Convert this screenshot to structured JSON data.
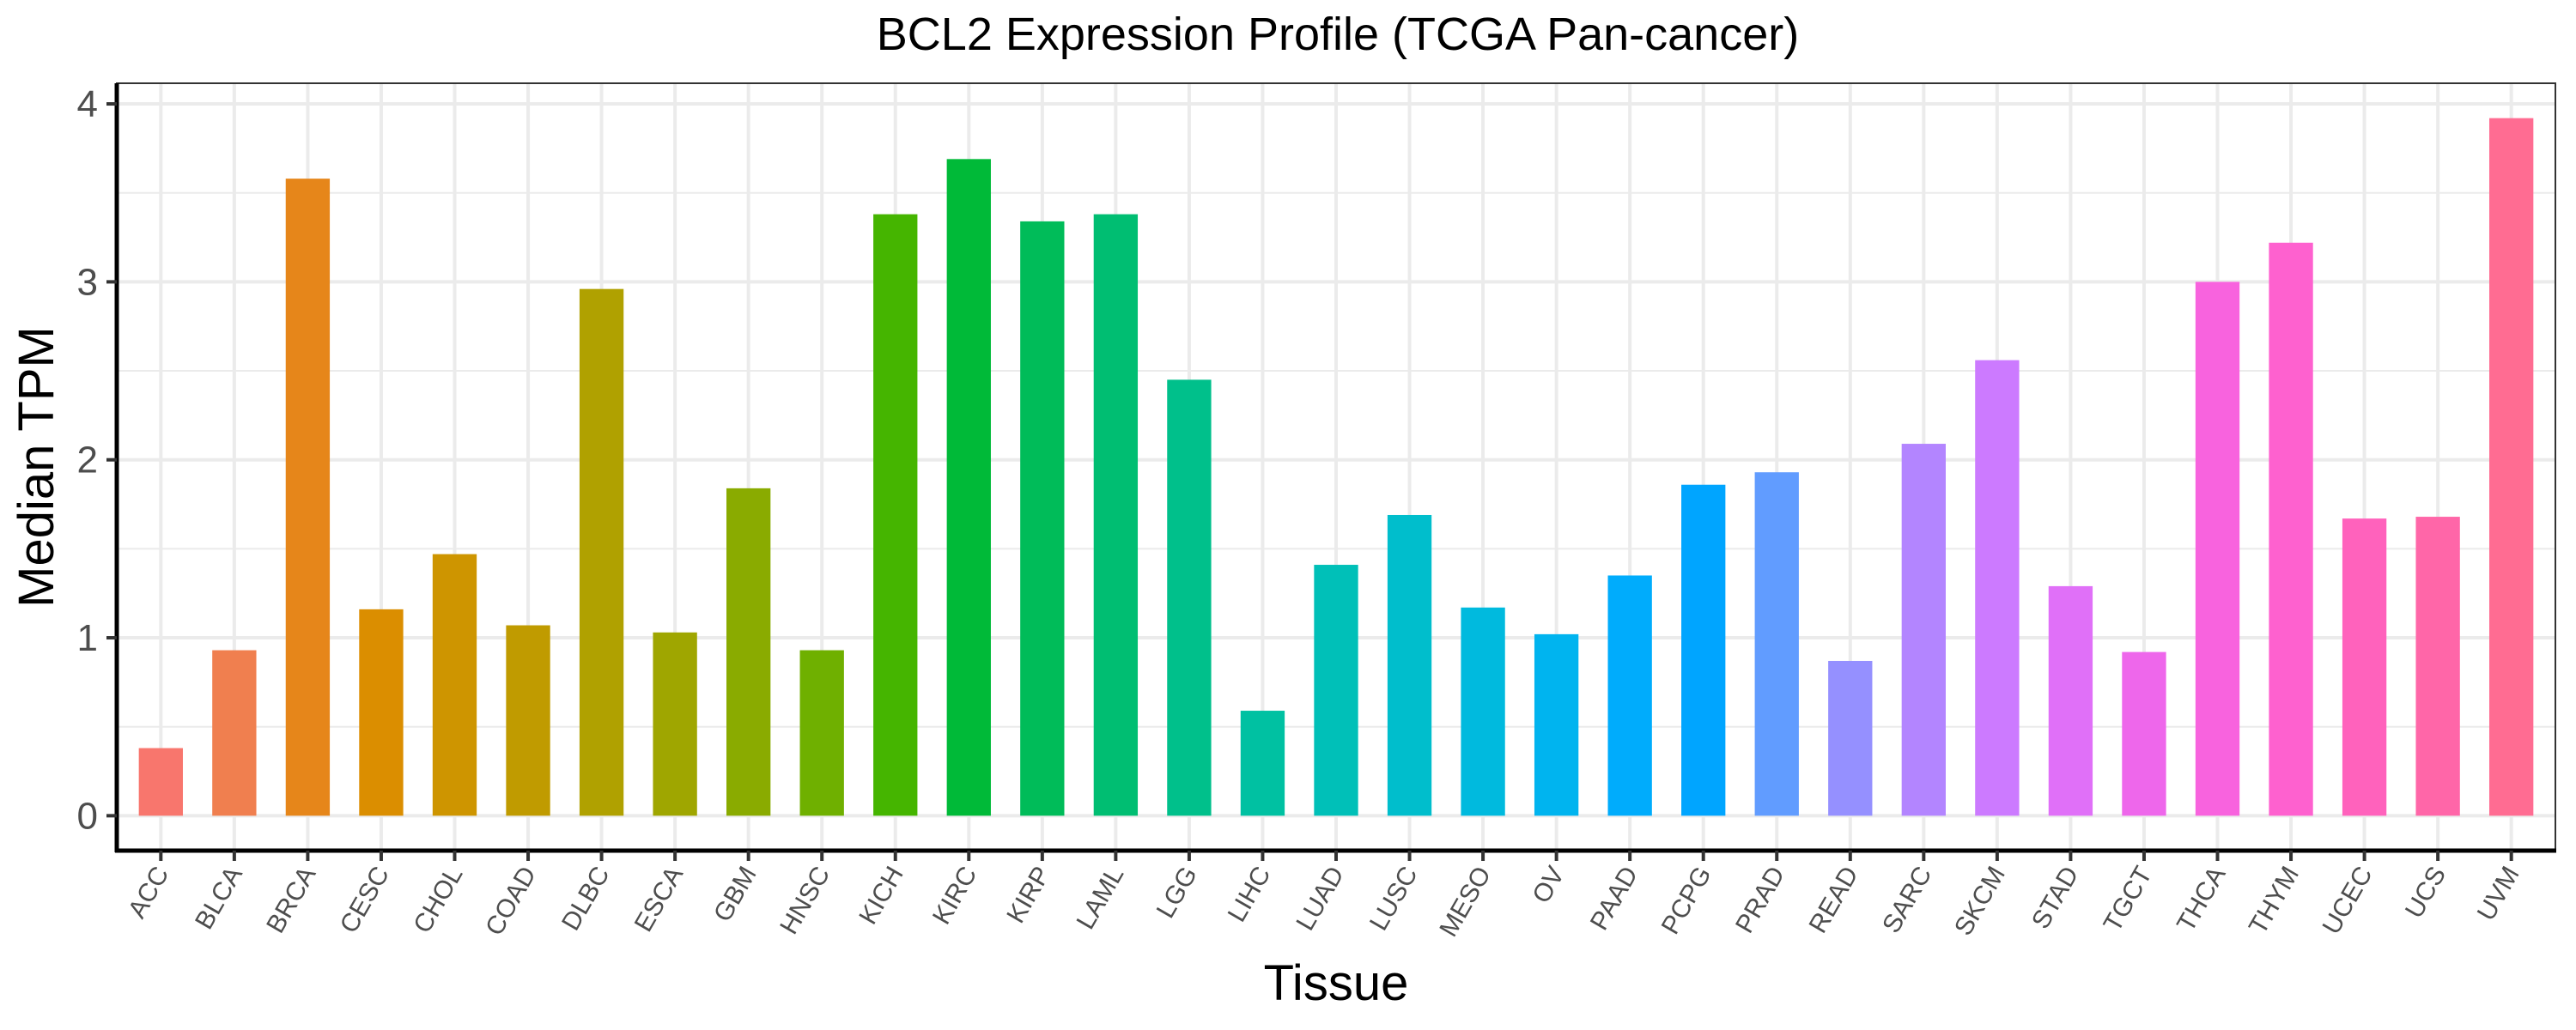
{
  "chart_data": {
    "type": "bar",
    "title": "BCL2 Expression Profile (TCGA Pan-cancer)",
    "xlabel": "Tissue",
    "ylabel": "Median TPM",
    "ylim": [
      -0.196,
      4.116
    ],
    "yticks": [
      0,
      1,
      2,
      3,
      4
    ],
    "ytick_labels": [
      "0",
      "1",
      "2",
      "3",
      "4"
    ],
    "grid": true,
    "legend": "none",
    "categories": [
      "ACC",
      "BLCA",
      "BRCA",
      "CESC",
      "CHOL",
      "COAD",
      "DLBC",
      "ESCA",
      "GBM",
      "HNSC",
      "KICH",
      "KIRC",
      "KIRP",
      "LAML",
      "LGG",
      "LIHC",
      "LUAD",
      "LUSC",
      "MESO",
      "OV",
      "PAAD",
      "PCPG",
      "PRAD",
      "READ",
      "SARC",
      "SKCM",
      "STAD",
      "TGCT",
      "THCA",
      "THYM",
      "UCEC",
      "UCS",
      "UVM"
    ],
    "values": [
      0.38,
      0.93,
      3.58,
      1.16,
      1.47,
      1.07,
      2.96,
      1.03,
      1.84,
      0.93,
      3.38,
      3.69,
      3.34,
      3.38,
      2.45,
      0.59,
      1.41,
      1.69,
      1.17,
      1.02,
      1.35,
      1.86,
      1.93,
      0.87,
      2.09,
      2.56,
      1.29,
      0.92,
      3.0,
      3.22,
      1.67,
      1.68,
      3.92
    ],
    "colors": [
      "#F8766D",
      "#F07F4F",
      "#E6861A",
      "#DB8E00",
      "#CE9500",
      "#C09B00",
      "#B0A100",
      "#9FA600",
      "#8AAB00",
      "#6FB000",
      "#45B500",
      "#00BA38",
      "#00BC59",
      "#00BE72",
      "#00C08B",
      "#00C1A2",
      "#00C0B8",
      "#00BECC",
      "#00BADE",
      "#00B4EF",
      "#00ACFC",
      "#00A5FF",
      "#619CFF",
      "#9590FF",
      "#B385FF",
      "#CC7AFF",
      "#E070F8",
      "#EE67EB",
      "#F863DE",
      "#FE61CF",
      "#FF62BC",
      "#FF66A8",
      "#FF6C92"
    ]
  }
}
